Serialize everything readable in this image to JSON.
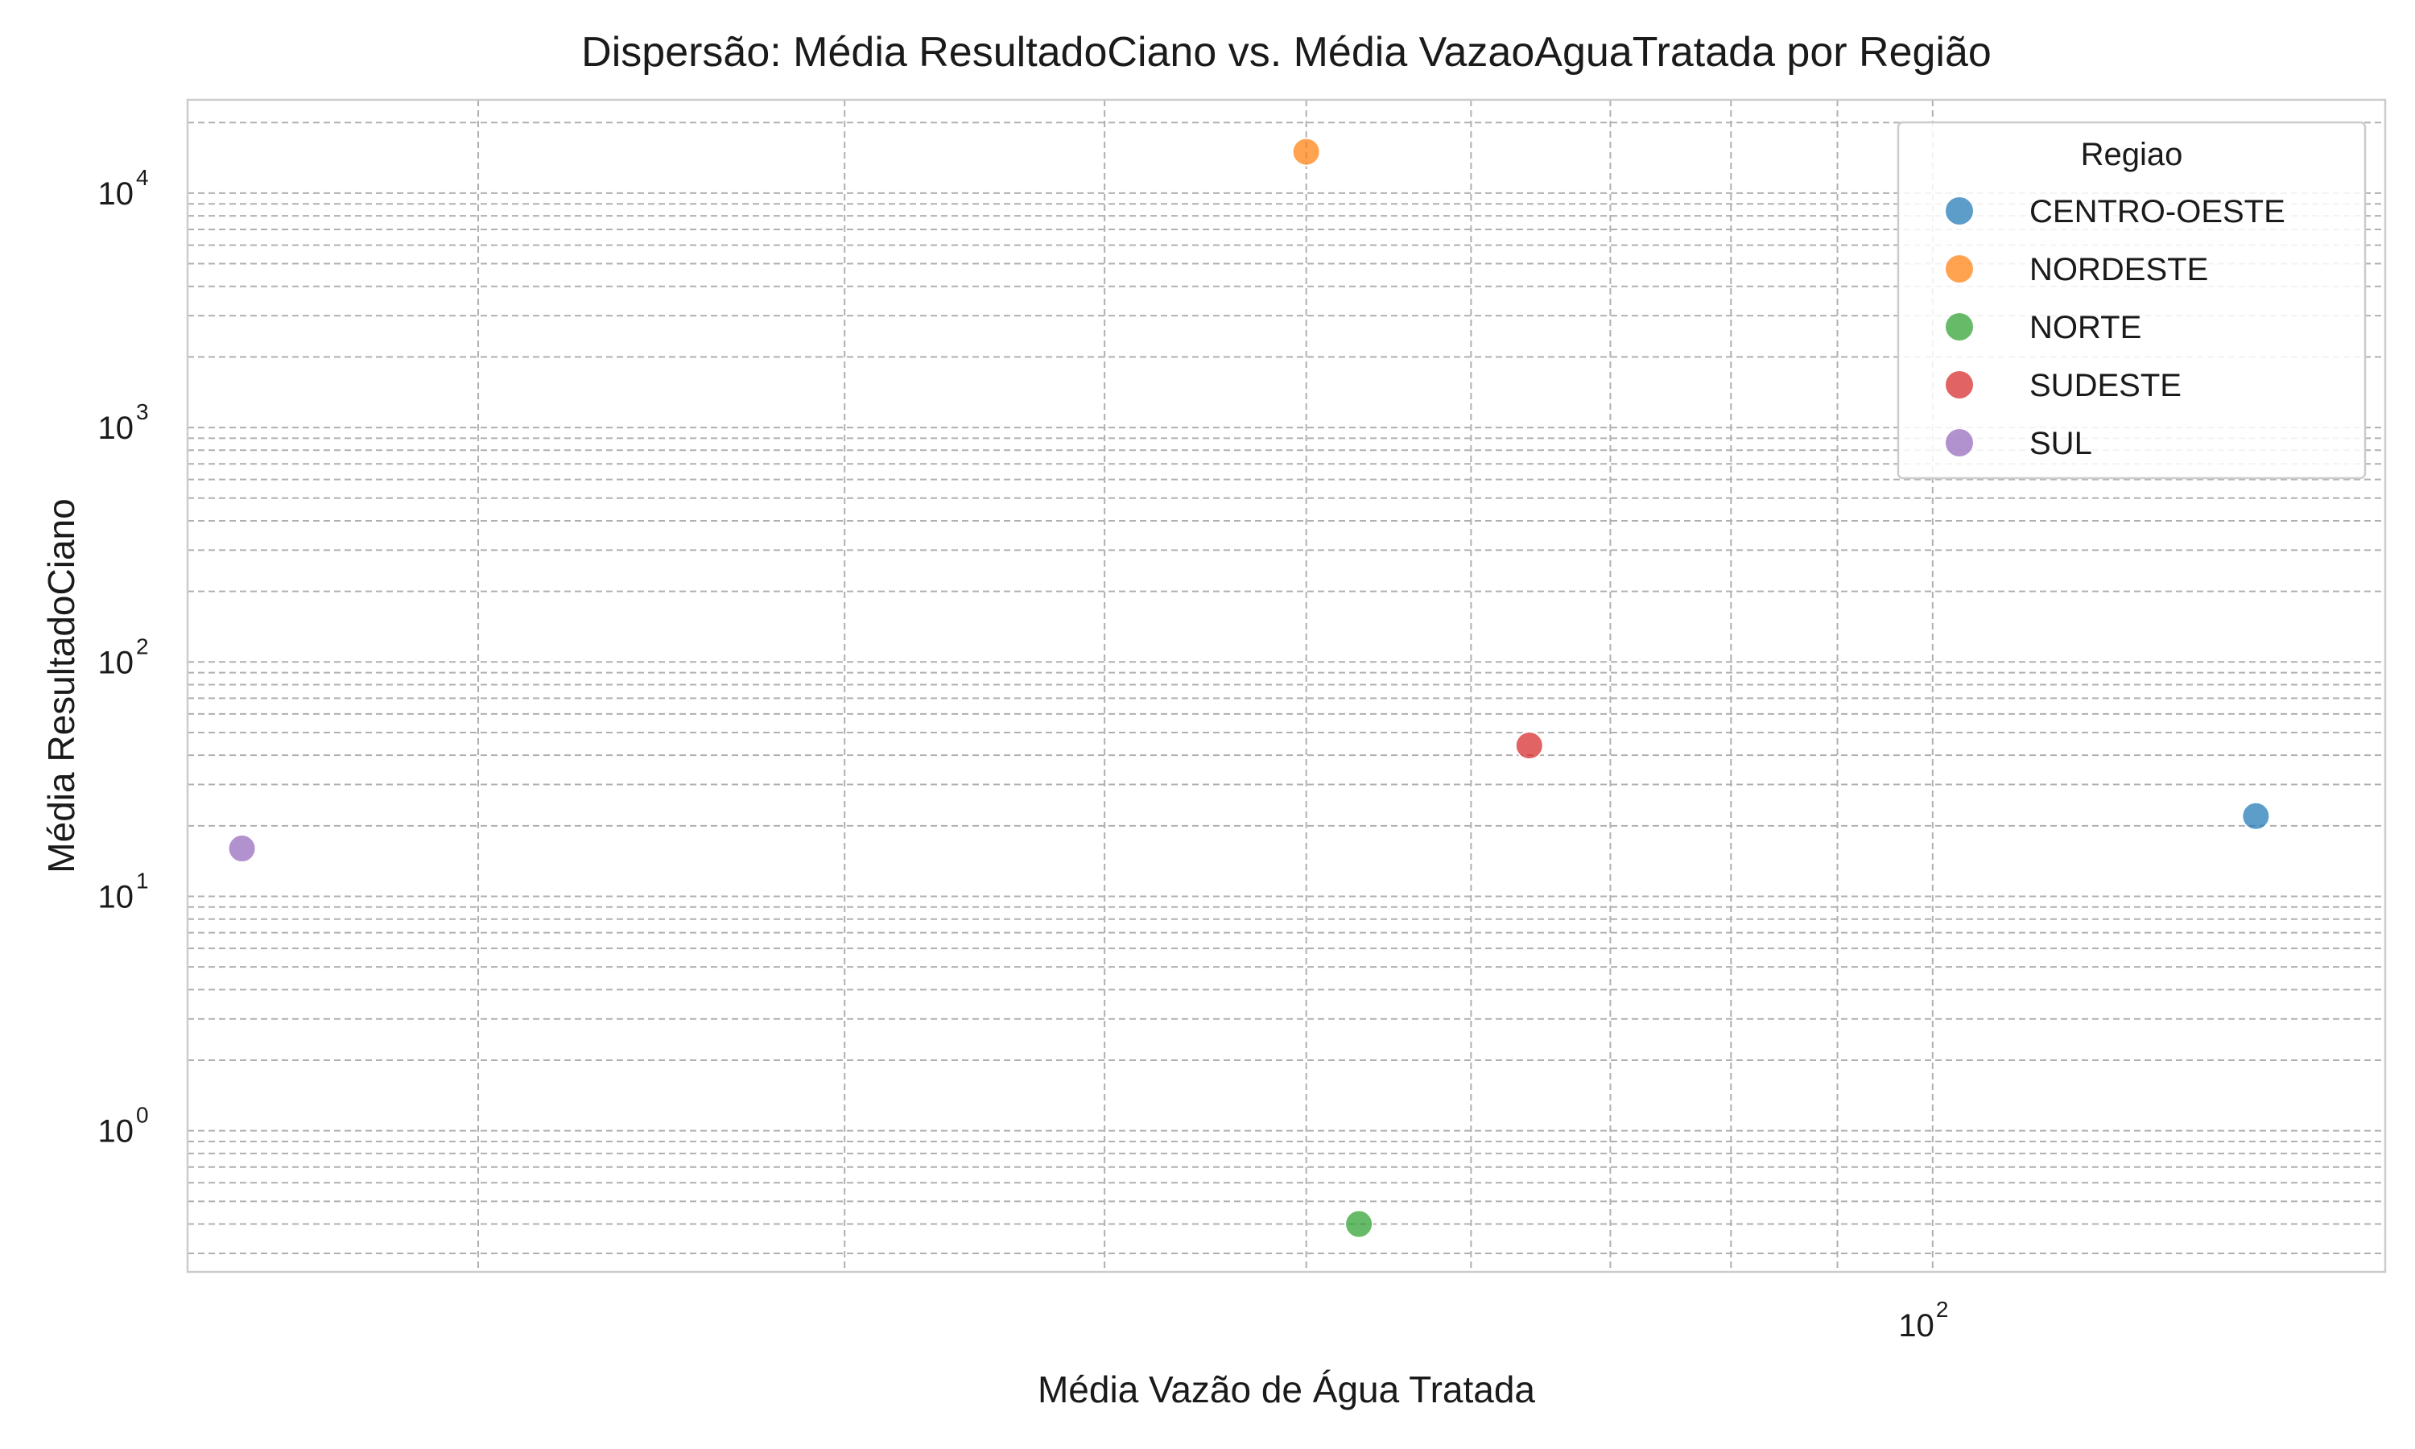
{
  "chart_data": {
    "type": "scatter",
    "title": "Dispersão: Média ResultadoCiano vs. Média VazaoAguaTratada por Região",
    "xlabel": "Média Vazão de Água Tratada",
    "ylabel": "Média ResultadoCiano",
    "x_scale": "log",
    "y_scale": "log",
    "xlim": [
      14.5,
      165
    ],
    "ylim": [
      0.25,
      25000
    ],
    "x_major_ticks": [
      {
        "value": 100,
        "base": "10",
        "exp": "2"
      }
    ],
    "y_major_ticks": [
      {
        "value": 1,
        "base": "10",
        "exp": "0"
      },
      {
        "value": 10,
        "base": "10",
        "exp": "1"
      },
      {
        "value": 100,
        "base": "10",
        "exp": "2"
      },
      {
        "value": 1000,
        "base": "10",
        "exp": "3"
      },
      {
        "value": 10000,
        "base": "10",
        "exp": "4"
      }
    ],
    "grid": true,
    "grid_style": "dashed",
    "legend": {
      "title": "Regiao",
      "placement": "top-right"
    },
    "series": [
      {
        "name": "CENTRO-OESTE",
        "color": "#1f77b4",
        "x": [
          143
        ],
        "y": [
          22
        ]
      },
      {
        "name": "NORDESTE",
        "color": "#ff7f0e",
        "x": [
          50
        ],
        "y": [
          15000
        ]
      },
      {
        "name": "NORTE",
        "color": "#2ca02c",
        "x": [
          53
        ],
        "y": [
          0.4
        ]
      },
      {
        "name": "SUDESTE",
        "color": "#d62728",
        "x": [
          64
        ],
        "y": [
          44
        ]
      },
      {
        "name": "SUL",
        "color": "#9467bd",
        "x": [
          15.4
        ],
        "y": [
          16
        ]
      }
    ]
  }
}
